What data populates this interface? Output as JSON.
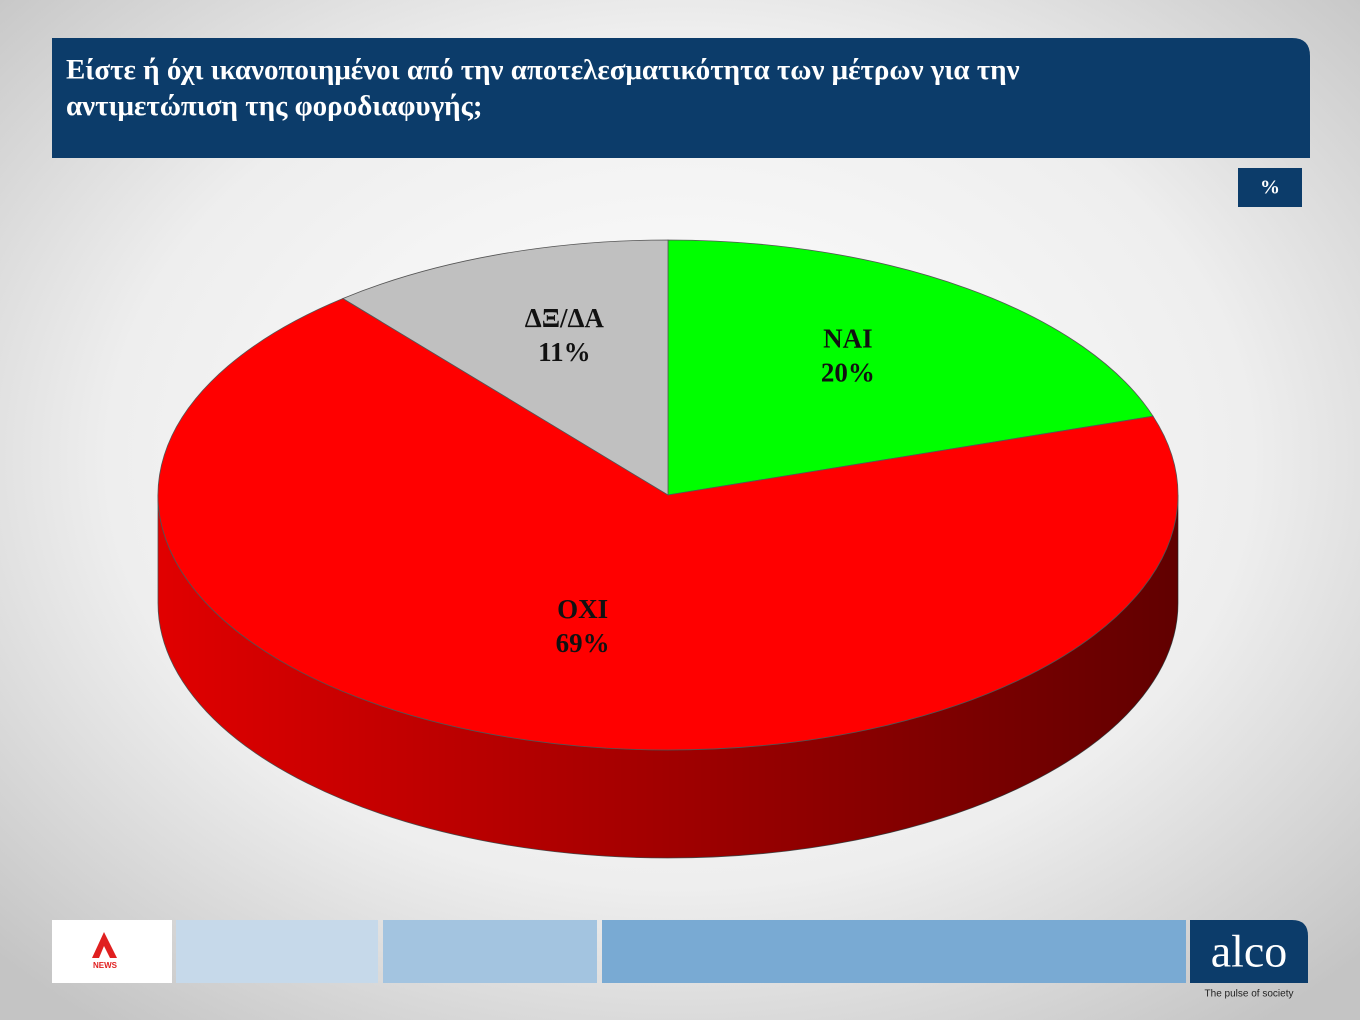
{
  "chart_data": {
    "type": "pie",
    "title": "Είστε ή όχι ικανοποιημένοι από την αποτελεσματικότητα των μέτρων για την αντιμετώπιση της φοροδιαφυγής;",
    "unit_badge": "%",
    "categories": [
      "ΝΑΙ",
      "ΟΧΙ",
      "ΔΞ/ΔΑ"
    ],
    "values": [
      20,
      69,
      11
    ],
    "value_labels": [
      "20%",
      "69%",
      "11%"
    ],
    "colors": [
      "#00ff00",
      "#ff0000",
      "#c0c0c0"
    ]
  },
  "branding": {
    "logo_text": "NEWS",
    "brand": "alco",
    "tagline": "The pulse of society"
  }
}
